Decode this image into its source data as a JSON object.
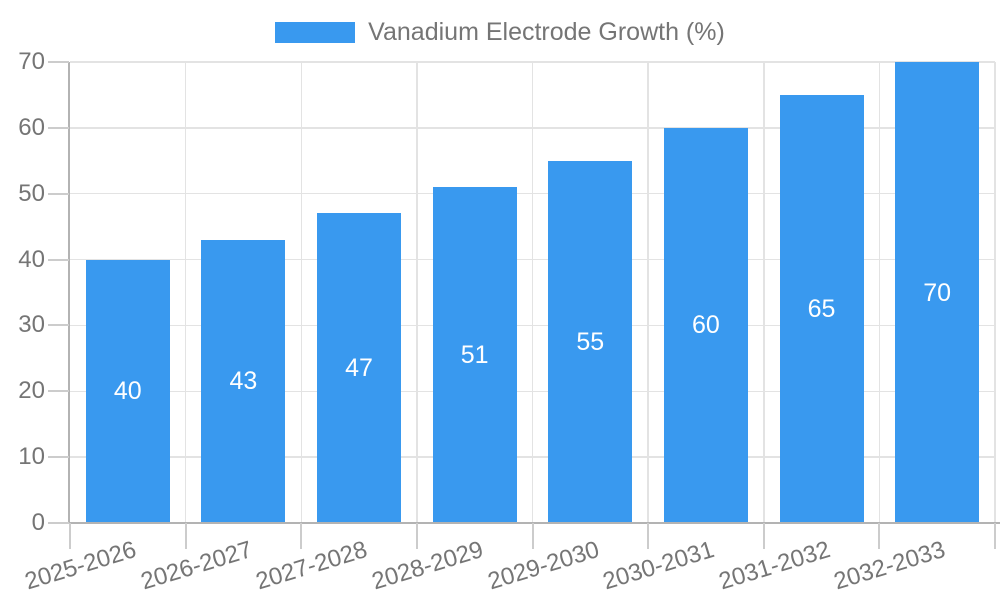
{
  "chart_data": {
    "type": "bar",
    "title": "Vanadium Electrode Growth (%)",
    "categories": [
      "2025-2026",
      "2026-2027",
      "2027-2028",
      "2028-2029",
      "2029-2030",
      "2030-2031",
      "2031-2032",
      "2032-2033"
    ],
    "series": [
      {
        "name": "Vanadium Electrode Growth (%)",
        "values": [
          40,
          43,
          47,
          51,
          55,
          60,
          65,
          70
        ]
      }
    ],
    "xlabel": "",
    "ylabel": "",
    "ylim": [
      0,
      70
    ],
    "y_ticks": [
      0,
      10,
      20,
      30,
      40,
      50,
      60,
      70
    ],
    "grid": "horizontal and vertical gridlines on",
    "value_labels": "white, centered inside bars",
    "x_label_rotation_deg": -17,
    "legend": {
      "position": "top-center",
      "entries": [
        {
          "label": "Vanadium Electrode Growth (%)",
          "color": "#3999EF"
        }
      ]
    },
    "colors": {
      "bar": "#3999EF",
      "value_label_text": "#FFFFFF",
      "axis_text": "#757575",
      "axis_line": "#B3B3B3",
      "gridline": "#E3E3E3",
      "tick_mark": "#CCCCCC",
      "background": "#FFFFFF"
    }
  }
}
